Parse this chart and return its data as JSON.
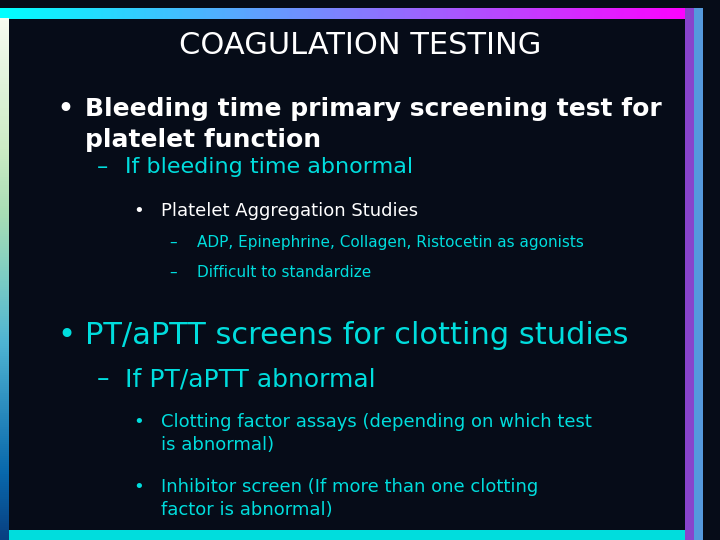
{
  "bg_color": "#060c18",
  "title": "COAGULATION TESTING",
  "title_color": "#ffffff",
  "title_fontsize": 22,
  "content": [
    {
      "level": 0,
      "bullet": "•",
      "text": "Bleeding time primary screening test for\nplatelet function",
      "color": "#ffffff",
      "fontsize": 18,
      "bold": true,
      "indent": 0.08
    },
    {
      "level": 1,
      "bullet": "–",
      "text": "If bleeding time abnormal",
      "color": "#00dddd",
      "fontsize": 16,
      "bold": false,
      "indent": 0.135
    },
    {
      "level": 2,
      "bullet": "•",
      "text": "Platelet Aggregation Studies",
      "color": "#ffffff",
      "fontsize": 13,
      "bold": false,
      "indent": 0.185
    },
    {
      "level": 3,
      "bullet": "–",
      "text": "ADP, Epinephrine, Collagen, Ristocetin as agonists",
      "color": "#00dddd",
      "fontsize": 11,
      "bold": false,
      "indent": 0.235
    },
    {
      "level": 3,
      "bullet": "–",
      "text": "Difficult to standardize",
      "color": "#00dddd",
      "fontsize": 11,
      "bold": false,
      "indent": 0.235
    },
    {
      "level": 0,
      "bullet": "•",
      "text": "PT/aPTT screens for clotting studies",
      "color": "#00dddd",
      "fontsize": 22,
      "bold": false,
      "indent": 0.08
    },
    {
      "level": 1,
      "bullet": "–",
      "text": "If PT/aPTT abnormal",
      "color": "#00dddd",
      "fontsize": 18,
      "bold": false,
      "indent": 0.135
    },
    {
      "level": 2,
      "bullet": "•",
      "text": "Clotting factor assays (depending on which test\nis abnormal)",
      "color": "#00dddd",
      "fontsize": 13,
      "bold": false,
      "indent": 0.185
    },
    {
      "level": 2,
      "bullet": "•",
      "text": "Inhibitor screen (If more than one clotting\nfactor is abnormal)",
      "color": "#00dddd",
      "fontsize": 13,
      "bold": false,
      "indent": 0.185
    }
  ]
}
